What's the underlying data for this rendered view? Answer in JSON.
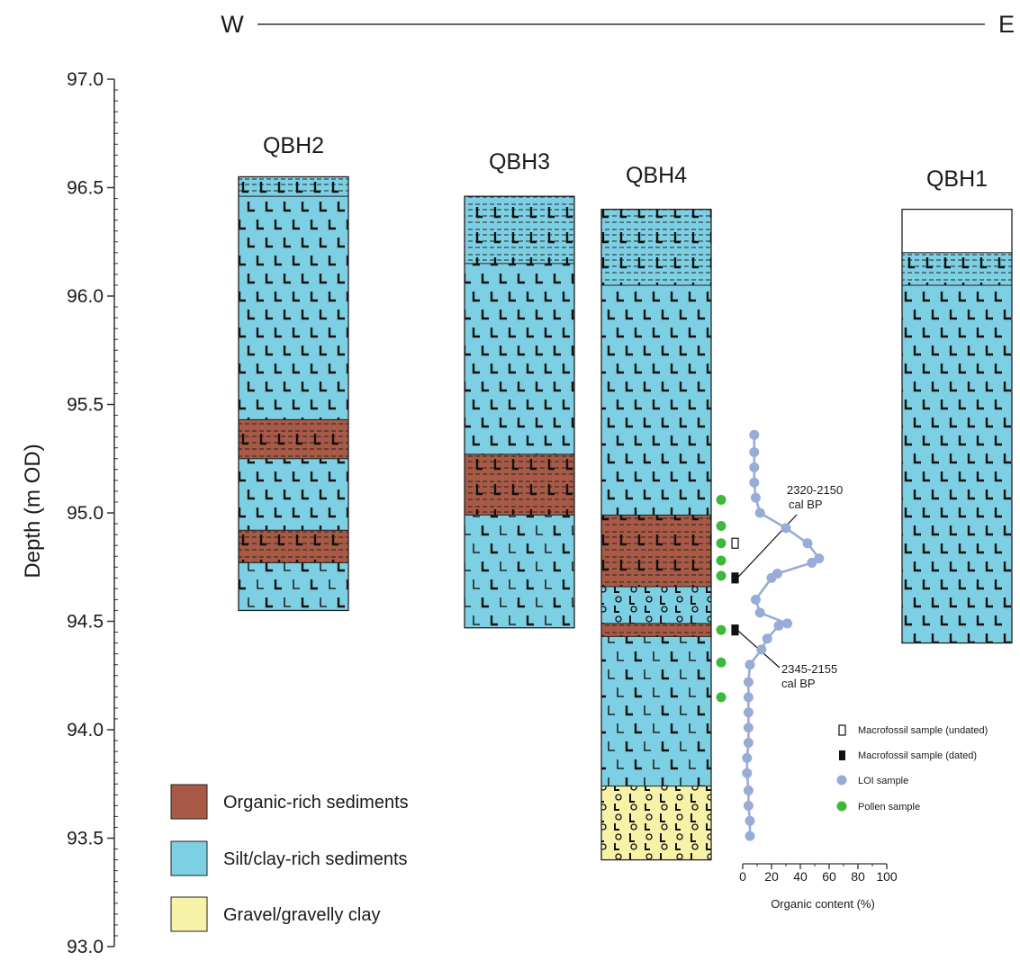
{
  "figure": {
    "compass_left": "W",
    "compass_right": "E"
  },
  "chart_data": {
    "type": "stratigraphic-column",
    "ylabel": "Depth (m OD)",
    "ylim": [
      93.0,
      97.0
    ],
    "y_ticks": [
      97.0,
      96.5,
      96.0,
      95.5,
      95.0,
      94.5,
      94.0,
      93.5,
      93.0
    ],
    "y_tick_labels": [
      "97.0",
      "96.5",
      "96.0",
      "95.5",
      "95.0",
      "94.5",
      "94.0",
      "93.5",
      "93.0"
    ],
    "colors": {
      "organic": "#a85a46",
      "silt": "#7dd0e3",
      "gravel": "#f6f2a8",
      "void": "#ffffff",
      "loi": "#97acd6",
      "pollen": "#3cb83c"
    },
    "boreholes": [
      {
        "name": "QBH2",
        "layers": [
          {
            "top": 96.55,
            "bottom": 96.46,
            "type": "silt",
            "pattern": "laminated"
          },
          {
            "top": 96.46,
            "bottom": 95.43,
            "type": "silt",
            "pattern": "peaty"
          },
          {
            "top": 95.43,
            "bottom": 95.25,
            "type": "organic",
            "pattern": "laminated"
          },
          {
            "top": 95.25,
            "bottom": 94.92,
            "type": "silt",
            "pattern": "peaty"
          },
          {
            "top": 94.92,
            "bottom": 94.77,
            "type": "organic",
            "pattern": "laminated"
          },
          {
            "top": 94.77,
            "bottom": 94.55,
            "type": "silt",
            "pattern": "peaty-light"
          }
        ]
      },
      {
        "name": "QBH3",
        "layers": [
          {
            "top": 96.46,
            "bottom": 96.15,
            "type": "silt",
            "pattern": "laminated"
          },
          {
            "top": 96.15,
            "bottom": 95.27,
            "type": "silt",
            "pattern": "peaty"
          },
          {
            "top": 95.27,
            "bottom": 94.99,
            "type": "organic",
            "pattern": "laminated"
          },
          {
            "top": 94.99,
            "bottom": 94.47,
            "type": "silt",
            "pattern": "peaty-light"
          }
        ]
      },
      {
        "name": "QBH4",
        "layers": [
          {
            "top": 96.4,
            "bottom": 96.05,
            "type": "silt",
            "pattern": "laminated"
          },
          {
            "top": 96.05,
            "bottom": 94.99,
            "type": "silt",
            "pattern": "peaty"
          },
          {
            "top": 94.99,
            "bottom": 94.66,
            "type": "organic",
            "pattern": "laminated"
          },
          {
            "top": 94.66,
            "bottom": 94.49,
            "type": "silt",
            "pattern": "gravelly"
          },
          {
            "top": 94.49,
            "bottom": 94.43,
            "type": "organic",
            "pattern": "laminated"
          },
          {
            "top": 94.43,
            "bottom": 93.74,
            "type": "silt",
            "pattern": "peaty-light"
          },
          {
            "top": 93.74,
            "bottom": 93.4,
            "type": "gravel",
            "pattern": "gravelly"
          }
        ]
      },
      {
        "name": "QBH1",
        "layers": [
          {
            "top": 96.4,
            "bottom": 96.2,
            "type": "void",
            "pattern": "none"
          },
          {
            "top": 96.2,
            "bottom": 96.05,
            "type": "silt",
            "pattern": "laminated"
          },
          {
            "top": 96.05,
            "bottom": 94.4,
            "type": "silt",
            "pattern": "peaty"
          }
        ]
      }
    ],
    "loi": {
      "xlabel": "Organic content (%)",
      "xlim": [
        0,
        100
      ],
      "x_ticks": [
        0,
        20,
        40,
        60,
        80,
        100
      ],
      "x_tick_labels": [
        "0",
        "20",
        "40",
        "60",
        "80",
        "100"
      ],
      "points": [
        {
          "depth": 95.36,
          "value": 8
        },
        {
          "depth": 95.28,
          "value": 8
        },
        {
          "depth": 95.21,
          "value": 8
        },
        {
          "depth": 95.14,
          "value": 8
        },
        {
          "depth": 95.07,
          "value": 9
        },
        {
          "depth": 95.0,
          "value": 12
        },
        {
          "depth": 94.93,
          "value": 30
        },
        {
          "depth": 94.86,
          "value": 45
        },
        {
          "depth": 94.79,
          "value": 53
        },
        {
          "depth": 94.77,
          "value": 48
        },
        {
          "depth": 94.72,
          "value": 24
        },
        {
          "depth": 94.7,
          "value": 20
        },
        {
          "depth": 94.6,
          "value": 9
        },
        {
          "depth": 94.54,
          "value": 12
        },
        {
          "depth": 94.49,
          "value": 31
        },
        {
          "depth": 94.48,
          "value": 25
        },
        {
          "depth": 94.42,
          "value": 17
        },
        {
          "depth": 94.37,
          "value": 13
        },
        {
          "depth": 94.3,
          "value": 5
        },
        {
          "depth": 94.22,
          "value": 4
        },
        {
          "depth": 94.15,
          "value": 4
        },
        {
          "depth": 94.08,
          "value": 4
        },
        {
          "depth": 94.01,
          "value": 4
        },
        {
          "depth": 93.94,
          "value": 4
        },
        {
          "depth": 93.87,
          "value": 3
        },
        {
          "depth": 93.8,
          "value": 3
        },
        {
          "depth": 93.72,
          "value": 4
        },
        {
          "depth": 93.65,
          "value": 4
        },
        {
          "depth": 93.58,
          "value": 5
        },
        {
          "depth": 93.51,
          "value": 5
        }
      ]
    },
    "pollen_samples": [
      95.06,
      94.94,
      94.86,
      94.78,
      94.71,
      94.46,
      94.31,
      94.15
    ],
    "macrofossil_samples": [
      {
        "depth": 94.86,
        "dated": false
      },
      {
        "depth": 94.7,
        "dated": true
      },
      {
        "depth": 94.46,
        "dated": true
      }
    ],
    "date_labels": [
      {
        "line1": "2320-2150",
        "line2": "cal BP"
      },
      {
        "line1": "2345-2155",
        "line2": "cal BP"
      }
    ],
    "legend": [
      {
        "label": "Organic-rich sediments",
        "type": "organic"
      },
      {
        "label": "Silt/clay-rich sediments",
        "type": "silt"
      },
      {
        "label": "Gravel/gravelly clay",
        "type": "gravel"
      }
    ],
    "symbol_legend": [
      {
        "label": "Macrofossil sample (undated)",
        "symbol": "undated"
      },
      {
        "label": "Macrofossil sample (dated)",
        "symbol": "dated"
      },
      {
        "label": "LOI sample",
        "symbol": "loi"
      },
      {
        "label": "Pollen sample",
        "symbol": "pollen"
      }
    ]
  }
}
